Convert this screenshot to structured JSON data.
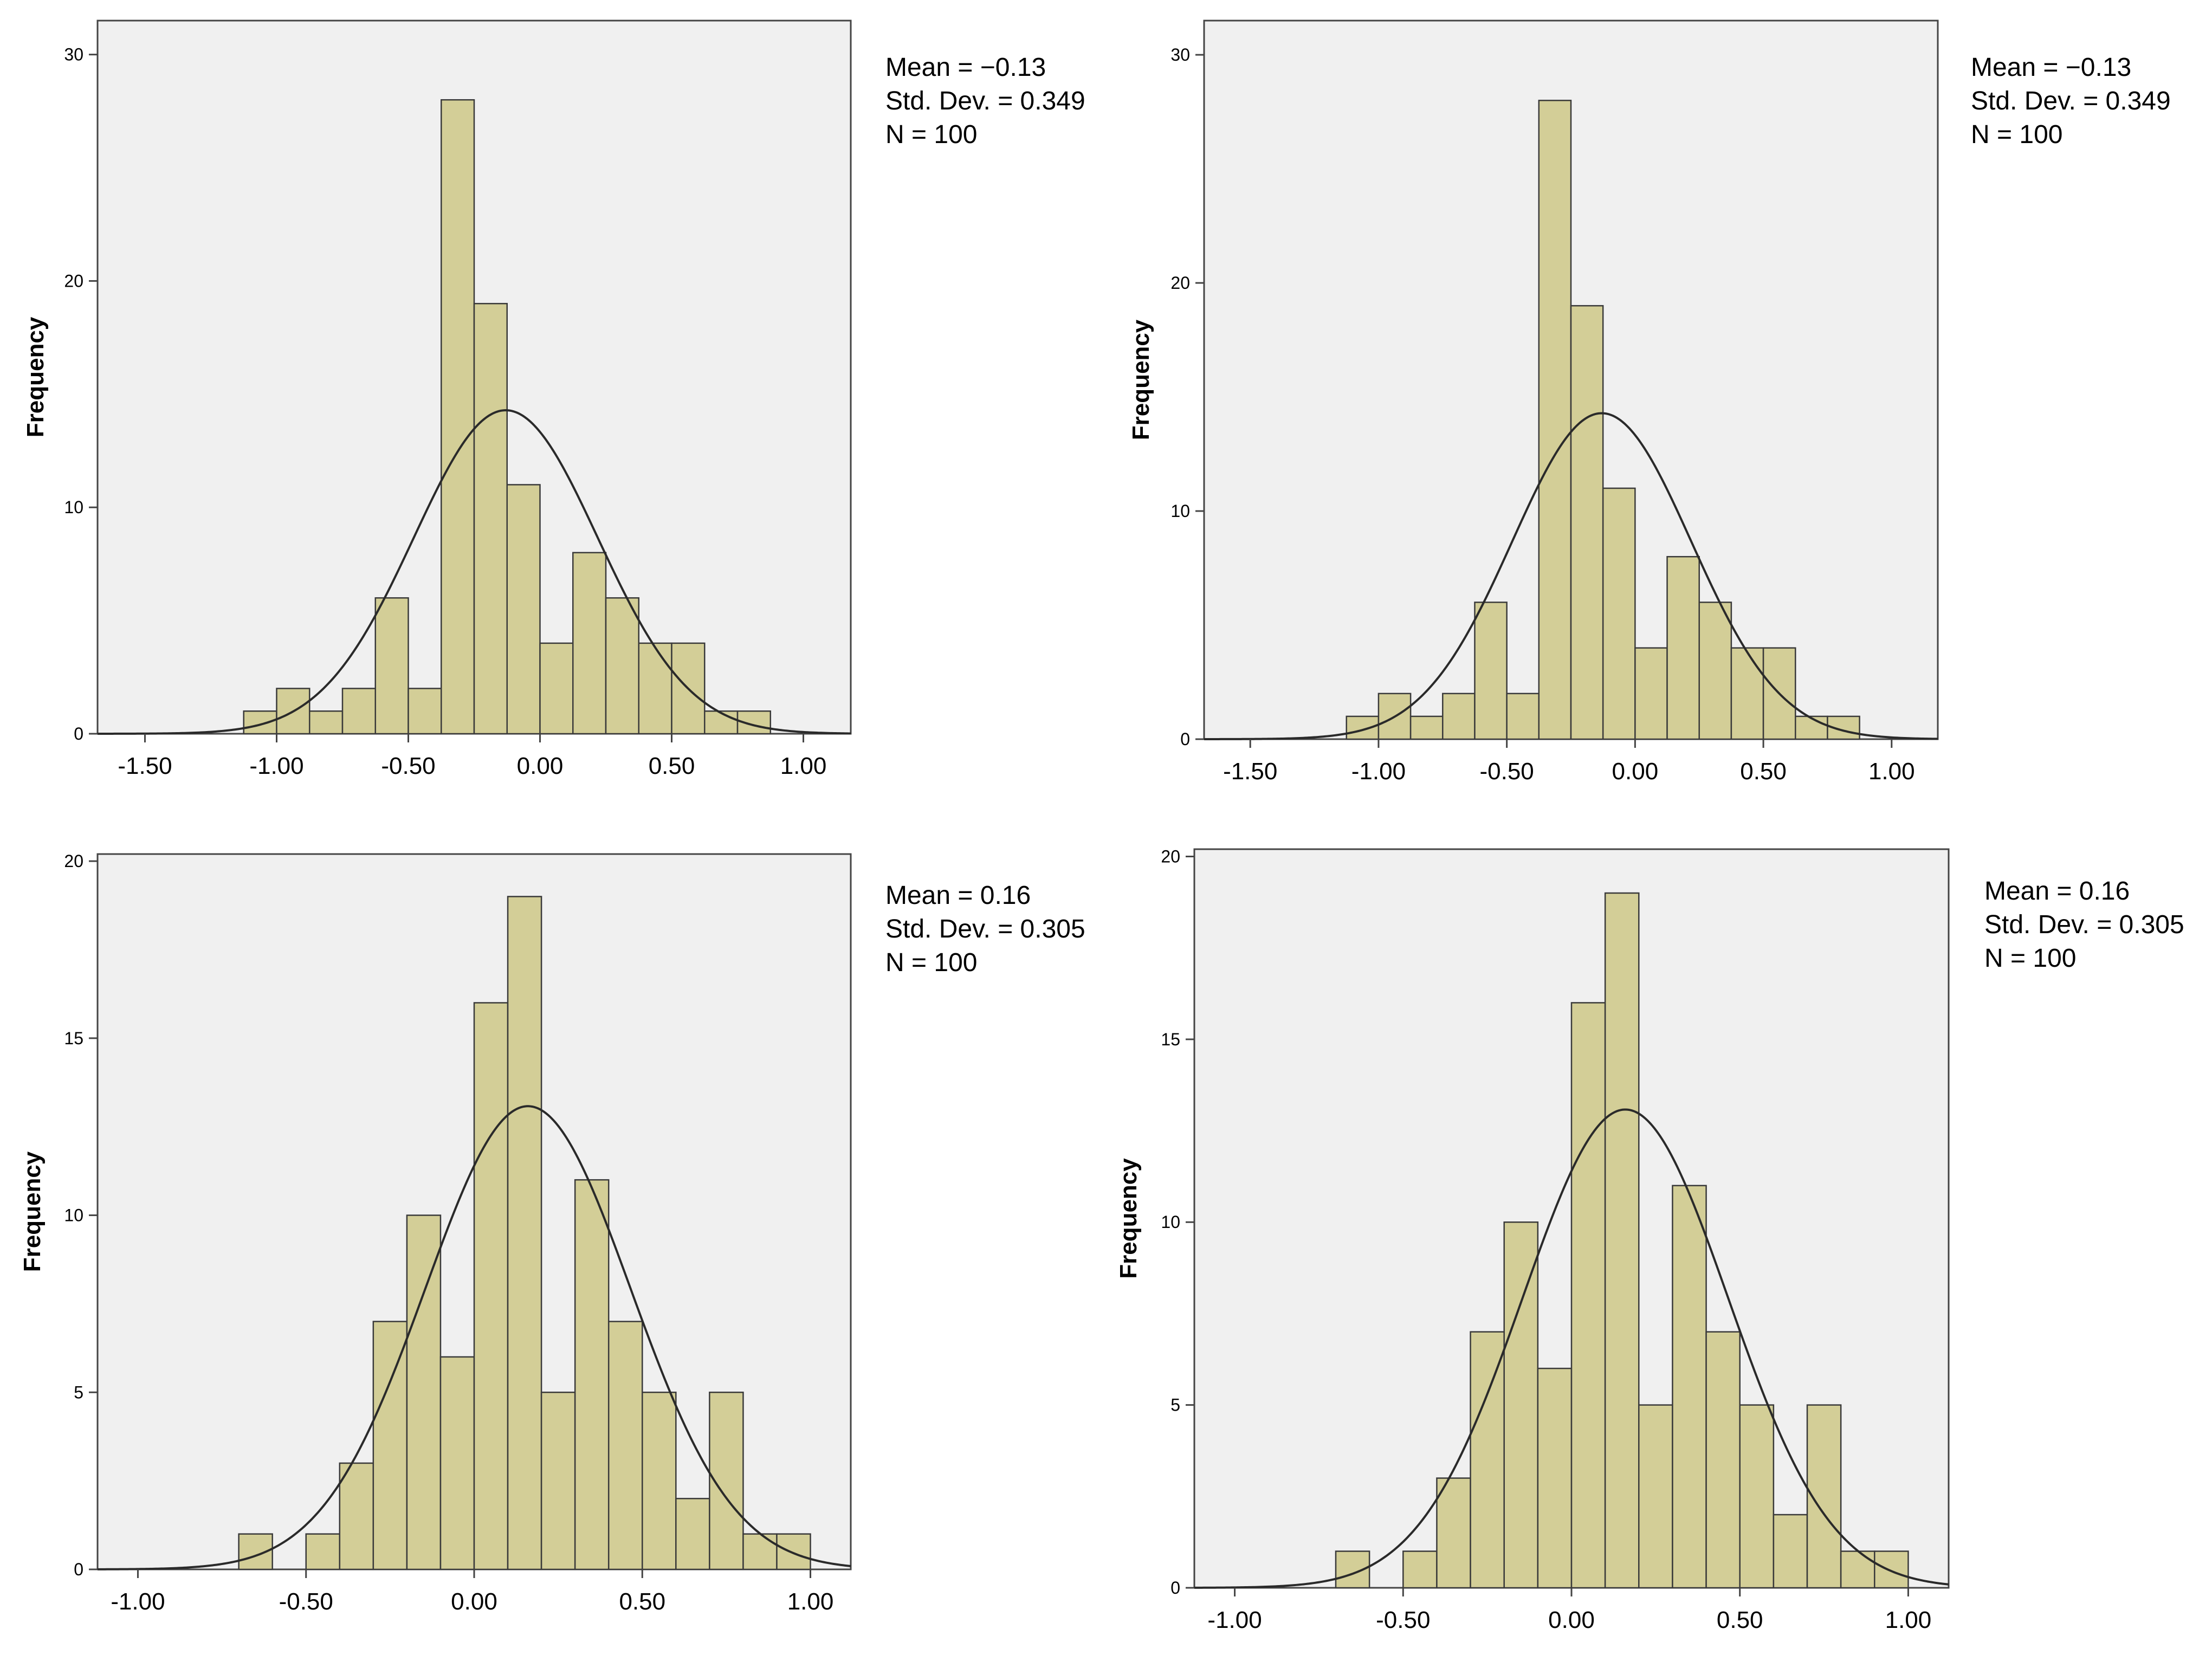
{
  "chart_data": [
    {
      "type": "bar",
      "subtype": "histogram",
      "ylabel": "Frequency",
      "xlim": [
        -1.68,
        1.18
      ],
      "ylim": [
        0,
        31.5
      ],
      "xticks": [
        -1.5,
        -1.0,
        -0.5,
        0.0,
        0.5,
        1.0
      ],
      "xtick_labels": [
        "-1.50",
        "-1.00",
        "-0.50",
        "0.00",
        "0.50",
        "1.00"
      ],
      "yticks": [
        0,
        10,
        20,
        30
      ],
      "ytick_labels": [
        "0",
        "10",
        "20",
        "30"
      ],
      "bin_start": -1.125,
      "bin_width": 0.125,
      "values": [
        1,
        2,
        1,
        2,
        6,
        2,
        28,
        19,
        11,
        4,
        8,
        6,
        4,
        4,
        1,
        1
      ],
      "normal_curve": {
        "mean": -0.13,
        "sd": 0.349,
        "n": 100
      },
      "stats": {
        "mean": "Mean = −0.13",
        "sd": "Std. Dev. = 0.349",
        "n": "N = 100"
      }
    },
    {
      "type": "bar",
      "subtype": "histogram",
      "ylabel": "Frequency",
      "xlim": [
        -1.68,
        1.18
      ],
      "ylim": [
        0,
        31.5
      ],
      "xticks": [
        -1.5,
        -1.0,
        -0.5,
        0.0,
        0.5,
        1.0
      ],
      "xtick_labels": [
        "-1.50",
        "-1.00",
        "-0.50",
        "0.00",
        "0.50",
        "1.00"
      ],
      "yticks": [
        0,
        10,
        20,
        30
      ],
      "ytick_labels": [
        "0",
        "10",
        "20",
        "30"
      ],
      "bin_start": -1.125,
      "bin_width": 0.125,
      "values": [
        1,
        2,
        1,
        2,
        6,
        2,
        28,
        19,
        11,
        4,
        8,
        6,
        4,
        4,
        1,
        1
      ],
      "normal_curve": {
        "mean": -0.13,
        "sd": 0.349,
        "n": 100
      },
      "stats": {
        "mean": "Mean = −0.13",
        "sd": "Std. Dev. = 0.349",
        "n": "N = 100"
      }
    },
    {
      "type": "bar",
      "subtype": "histogram",
      "ylabel": "Frequency",
      "xlim": [
        -1.12,
        1.12
      ],
      "ylim": [
        0,
        20.2
      ],
      "xticks": [
        -1.0,
        -0.5,
        0.0,
        0.5,
        1.0
      ],
      "xtick_labels": [
        "-1.00",
        "-0.50",
        "0.00",
        "0.50",
        "1.00"
      ],
      "yticks": [
        0,
        5,
        10,
        15,
        20
      ],
      "ytick_labels": [
        "0",
        "5",
        "10",
        "15",
        "20"
      ],
      "bin_start": -0.7,
      "bin_width": 0.1,
      "values": [
        1,
        0,
        1,
        3,
        7,
        10,
        6,
        16,
        19,
        5,
        11,
        7,
        5,
        2,
        5,
        1,
        1
      ],
      "normal_curve": {
        "mean": 0.16,
        "sd": 0.305,
        "n": 100
      },
      "stats": {
        "mean": "Mean = 0.16",
        "sd": "Std. Dev. = 0.305",
        "n": "N = 100"
      }
    },
    {
      "type": "bar",
      "subtype": "histogram",
      "ylabel": "Frequency",
      "xlim": [
        -1.12,
        1.12
      ],
      "ylim": [
        0,
        20.2
      ],
      "xticks": [
        -1.0,
        -0.5,
        0.0,
        0.5,
        1.0
      ],
      "xtick_labels": [
        "-1.00",
        "-0.50",
        "0.00",
        "0.50",
        "1.00"
      ],
      "yticks": [
        0,
        5,
        10,
        15,
        20
      ],
      "ytick_labels": [
        "0",
        "5",
        "10",
        "15",
        "20"
      ],
      "bin_start": -0.7,
      "bin_width": 0.1,
      "values": [
        1,
        0,
        1,
        3,
        7,
        10,
        6,
        16,
        19,
        5,
        11,
        7,
        5,
        2,
        5,
        1,
        1
      ],
      "normal_curve": {
        "mean": 0.16,
        "sd": 0.305,
        "n": 100
      },
      "stats": {
        "mean": "Mean = 0.16",
        "sd": "Std. Dev. = 0.305",
        "n": "N = 100"
      }
    }
  ],
  "colors": {
    "plot_bg": "#f0f0f0",
    "bar_fill": "#d3ce97",
    "bar_stroke": "#3a3a3a",
    "curve": "#2a2a2a",
    "frame": "#444444",
    "text": "#000000"
  }
}
